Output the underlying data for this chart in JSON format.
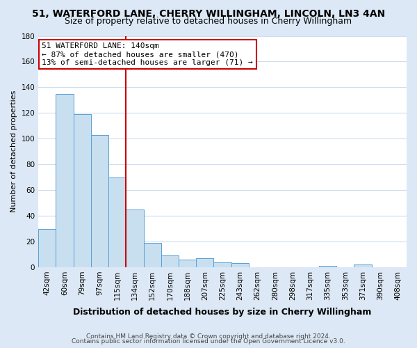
{
  "title1": "51, WATERFORD LANE, CHERRY WILLINGHAM, LINCOLN, LN3 4AN",
  "title2": "Size of property relative to detached houses in Cherry Willingham",
  "xlabel": "Distribution of detached houses by size in Cherry Willingham",
  "ylabel": "Number of detached properties",
  "bar_color": "#c8dff0",
  "bar_edge_color": "#5a9fd4",
  "categories": [
    "42sqm",
    "60sqm",
    "79sqm",
    "97sqm",
    "115sqm",
    "134sqm",
    "152sqm",
    "170sqm",
    "188sqm",
    "207sqm",
    "225sqm",
    "243sqm",
    "262sqm",
    "280sqm",
    "298sqm",
    "317sqm",
    "335sqm",
    "353sqm",
    "371sqm",
    "390sqm",
    "408sqm"
  ],
  "values": [
    30,
    135,
    119,
    103,
    70,
    45,
    19,
    9,
    6,
    7,
    4,
    3,
    0,
    0,
    0,
    0,
    1,
    0,
    2,
    0,
    0
  ],
  "annotation_title": "51 WATERFORD LANE: 140sqm",
  "annotation_line1": "← 87% of detached houses are smaller (470)",
  "annotation_line2": "13% of semi-detached houses are larger (71) →",
  "vline_x_index": 5,
  "vline_color": "#cc0000",
  "annotation_box_color": "#ffffff",
  "annotation_box_edge": "#cc0000",
  "footer1": "Contains HM Land Registry data © Crown copyright and database right 2024.",
  "footer2": "Contains public sector information licensed under the Open Government Licence v3.0.",
  "page_bg_color": "#dce8f5",
  "plot_bg_color": "#ffffff",
  "ylim": [
    0,
    180
  ],
  "yticks": [
    0,
    20,
    40,
    60,
    80,
    100,
    120,
    140,
    160,
    180
  ],
  "title1_fontsize": 10,
  "title2_fontsize": 9,
  "xlabel_fontsize": 9,
  "ylabel_fontsize": 8,
  "tick_fontsize": 7.5,
  "footer_fontsize": 6.5
}
